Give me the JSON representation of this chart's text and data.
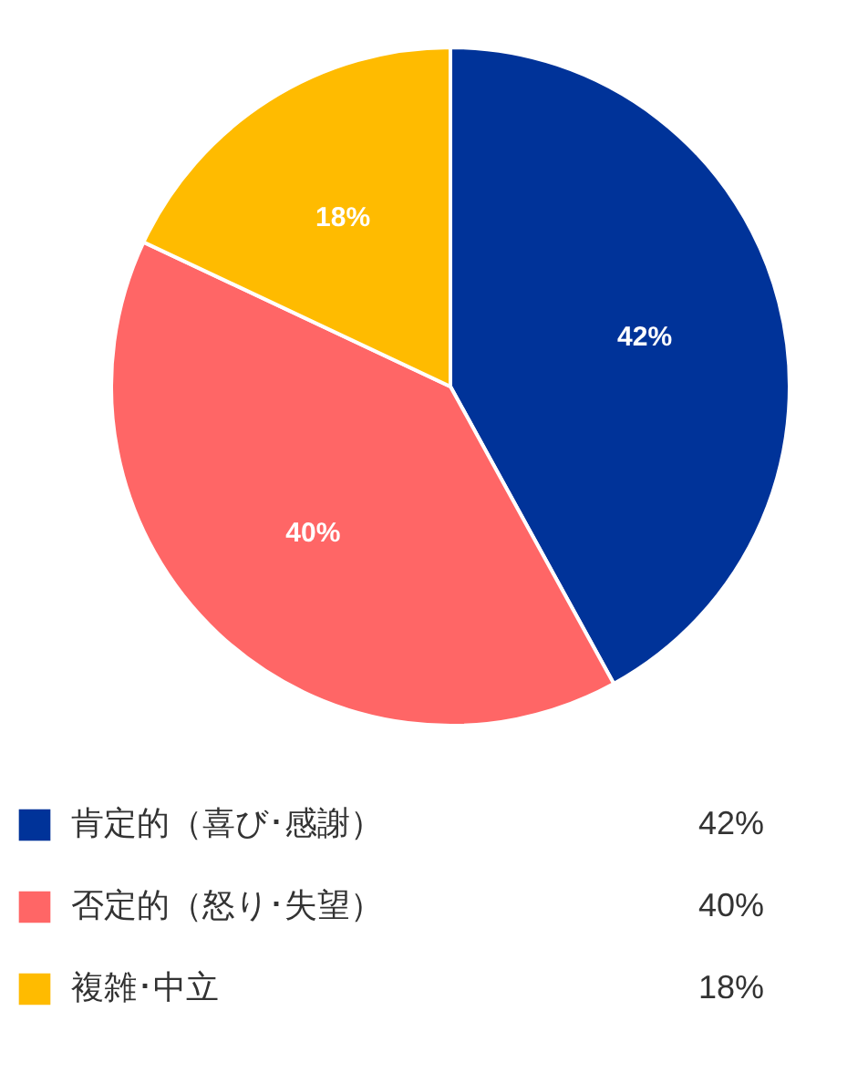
{
  "chart_data": {
    "type": "pie",
    "categories": [
      "肯定的（喜び･感謝）",
      "否定的（怒り･失望）",
      "複雑･中立"
    ],
    "values": [
      42,
      40,
      18
    ],
    "colors": [
      "#003399",
      "#ff6666",
      "#ffbb00"
    ],
    "value_labels": [
      "42%",
      "40%",
      "18%"
    ],
    "legend": "bottom"
  }
}
